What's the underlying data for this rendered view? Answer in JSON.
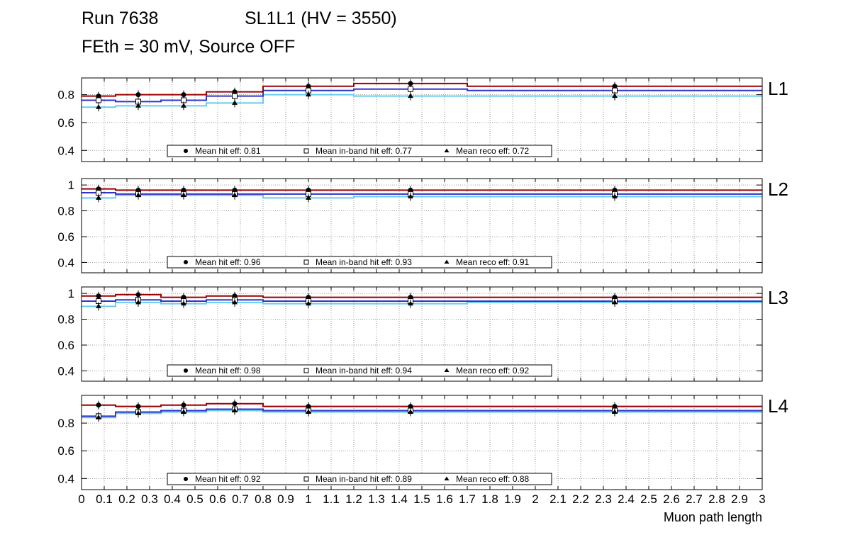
{
  "title": {
    "run": "Run 7638",
    "chamber": "SL1L1 (HV = 3550)",
    "conditions": "FEth = 30 mV, Source OFF"
  },
  "chart_data": {
    "type": "line",
    "xlabel": "Muon path length",
    "xlim": [
      0,
      3
    ],
    "x_tick_step": 0.1,
    "grid": "dotted",
    "bin_edges": [
      0,
      0.15,
      0.35,
      0.55,
      0.8,
      1.2,
      1.7,
      3.0
    ],
    "marker_x": [
      0.075,
      0.25,
      0.45,
      0.675,
      1.0,
      1.45,
      2.35
    ],
    "series_style": {
      "hit": {
        "color": "#990000",
        "marker": "filled-circle",
        "label": "Mean hit eff"
      },
      "inband": {
        "color": "#3333cc",
        "marker": "open-square",
        "label": "Mean in-band hit eff"
      },
      "reco": {
        "color": "#66ccf0",
        "marker": "filled-triangle",
        "label": "Mean reco eff"
      }
    },
    "panels": [
      {
        "label": "L1",
        "ylim": [
          0.32,
          0.92
        ],
        "yticks": [
          0.4,
          0.6,
          0.8
        ],
        "series": {
          "hit": [
            0.79,
            0.8,
            0.8,
            0.82,
            0.86,
            0.88,
            0.86
          ],
          "inband": [
            0.76,
            0.75,
            0.76,
            0.79,
            0.83,
            0.84,
            0.83
          ],
          "reco": [
            0.71,
            0.72,
            0.72,
            0.74,
            0.8,
            0.79,
            0.79
          ]
        },
        "legend": [
          {
            "marker": "filled-circle",
            "text": "Mean hit  eff: 0.81"
          },
          {
            "marker": "open-square",
            "text": "Mean in-band hit eff: 0.77"
          },
          {
            "marker": "filled-triangle",
            "text": "Mean reco eff: 0.72"
          }
        ]
      },
      {
        "label": "L2",
        "ylim": [
          0.32,
          1.05
        ],
        "yticks": [
          0.4,
          0.6,
          0.8,
          1
        ],
        "series": {
          "hit": [
            0.97,
            0.96,
            0.96,
            0.96,
            0.96,
            0.96,
            0.96
          ],
          "inband": [
            0.94,
            0.93,
            0.93,
            0.93,
            0.93,
            0.93,
            0.93
          ],
          "reco": [
            0.9,
            0.92,
            0.92,
            0.92,
            0.9,
            0.91,
            0.91
          ]
        },
        "legend": [
          {
            "marker": "filled-circle",
            "text": "Mean hit  eff: 0.96"
          },
          {
            "marker": "open-square",
            "text": "Mean in-band hit eff: 0.93"
          },
          {
            "marker": "filled-triangle",
            "text": "Mean reco eff: 0.91"
          }
        ]
      },
      {
        "label": "L3",
        "ylim": [
          0.32,
          1.05
        ],
        "yticks": [
          0.4,
          0.6,
          0.8,
          1
        ],
        "series": {
          "hit": [
            0.98,
            0.99,
            0.97,
            0.98,
            0.97,
            0.97,
            0.97
          ],
          "inband": [
            0.94,
            0.95,
            0.94,
            0.95,
            0.94,
            0.94,
            0.94
          ],
          "reco": [
            0.9,
            0.93,
            0.92,
            0.93,
            0.92,
            0.92,
            0.93
          ]
        },
        "legend": [
          {
            "marker": "filled-circle",
            "text": "Mean hit  eff: 0.98"
          },
          {
            "marker": "open-square",
            "text": "Mean in-band hit eff: 0.94"
          },
          {
            "marker": "filled-triangle",
            "text": "Mean reco eff: 0.92"
          }
        ]
      },
      {
        "label": "L4",
        "ylim": [
          0.32,
          1.0
        ],
        "yticks": [
          0.4,
          0.6,
          0.8
        ],
        "series": {
          "hit": [
            0.93,
            0.92,
            0.93,
            0.94,
            0.92,
            0.92,
            0.92
          ],
          "inband": [
            0.85,
            0.88,
            0.89,
            0.9,
            0.89,
            0.89,
            0.89
          ],
          "reco": [
            0.84,
            0.87,
            0.88,
            0.89,
            0.88,
            0.88,
            0.88
          ]
        },
        "legend": [
          {
            "marker": "filled-circle",
            "text": "Mean hit  eff: 0.92"
          },
          {
            "marker": "open-square",
            "text": "Mean in-band hit eff: 0.89"
          },
          {
            "marker": "filled-triangle",
            "text": "Mean reco eff: 0.88"
          }
        ]
      }
    ]
  }
}
